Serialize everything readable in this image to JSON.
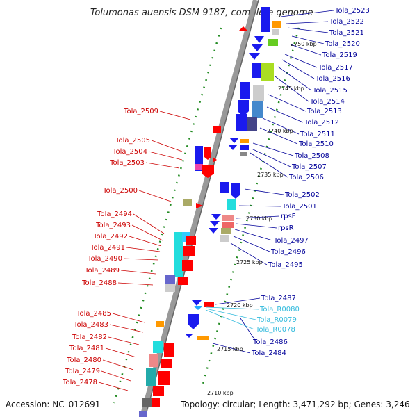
{
  "title": "Tolumonas auensis DSM 9187, complete genome",
  "accession": "Accession: NC_012691",
  "summary": "Topology: circular; Length: 3,471,292 bp; Genes: 3,246",
  "kbp_ticks": [
    "2750 kbp",
    "2745 kbp",
    "2740 kbp",
    "2735 kbp",
    "2730 kbp",
    "2725 kbp",
    "2720 kbp",
    "2715 kbp",
    "2710 kbp"
  ],
  "left_labels": [
    "Tola_2509",
    "Tola_2505",
    "Tola_2504",
    "Tola_2503",
    "Tola_2500",
    "Tola_2494",
    "Tola_2493",
    "Tola_2492",
    "Tola_2491",
    "Tola_2490",
    "Tola_2489",
    "Tola_2488",
    "Tola_2485",
    "Tola_2483",
    "Tola_2482",
    "Tola_2481",
    "Tola_2480",
    "Tola_2479",
    "Tola_2478"
  ],
  "right_labels": [
    "Tola_2523",
    "Tola_2522",
    "Tola_2521",
    "Tola_2520",
    "Tola_2519",
    "Tola_2517",
    "Tola_2516",
    "Tola_2515",
    "Tola_2514",
    "Tola_2513",
    "Tola_2512",
    "Tola_2511",
    "Tola_2510",
    "Tola_2508",
    "Tola_2507",
    "Tola_2506",
    "Tola_2502",
    "Tola_2501",
    "rpsF",
    "rpsR",
    "Tola_2497",
    "Tola_2496",
    "Tola_2495",
    "Tola_2487",
    "Tola_R0080",
    "Tola_R0079",
    "Tola_R0078",
    "Tola_2486",
    "Tola_2484"
  ],
  "colors": {
    "red": "#ff0000",
    "blue": "#1a1aee",
    "cyan": "#22dddd",
    "label_red": "#cc0000",
    "label_blue": "#000099",
    "label_cyan": "#33bbdd",
    "backbone": "#999999",
    "tick": "#228b22"
  }
}
